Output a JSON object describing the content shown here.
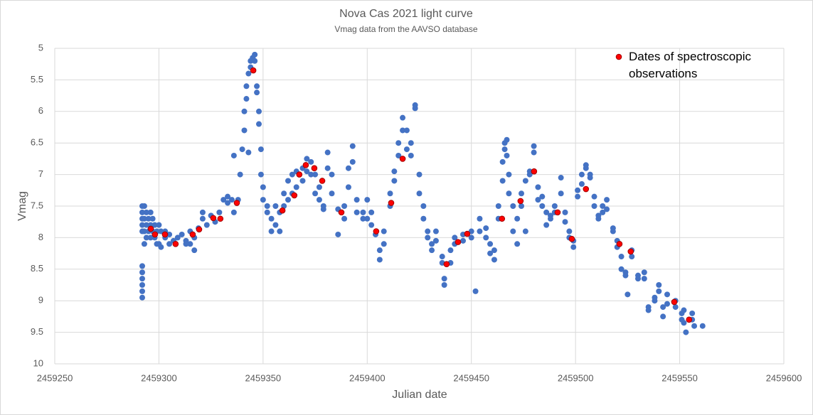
{
  "chart_data": {
    "type": "scatter",
    "title": "Nova Cas 2021 light curve",
    "subtitle": "Vmag data from the AAVSO database",
    "x_label": "Julian date",
    "y_label": "Vmag",
    "xlim": [
      2459250,
      2459600
    ],
    "xticks": [
      2459250,
      2459300,
      2459350,
      2459400,
      2459450,
      2459500,
      2459550,
      2459600
    ],
    "ylim": [
      10,
      5
    ],
    "yticks": [
      5,
      5.5,
      6,
      6.5,
      7,
      7.5,
      8,
      8.5,
      9,
      9.5,
      10
    ],
    "y_inverted": true,
    "grid": true,
    "legend": "upper right",
    "series": [
      {
        "color": "#4472c4",
        "x": [
          2459292,
          2459292,
          2459292,
          2459292,
          2459292,
          2459292,
          2459292,
          2459292,
          2459292,
          2459292,
          2459292,
          2459293,
          2459293,
          2459293,
          2459293,
          2459294,
          2459294,
          2459294,
          2459295,
          2459295,
          2459296,
          2459296,
          2459296,
          2459297,
          2459297,
          2459298,
          2459298,
          2459299,
          2459299,
          2459300,
          2459300,
          2459301,
          2459301,
          2459303,
          2459303,
          2459305,
          2459305,
          2459307,
          2459309,
          2459311,
          2459313,
          2459313,
          2459315,
          2459315,
          2459317,
          2459317,
          2459319,
          2459321,
          2459321,
          2459323,
          2459325,
          2459327,
          2459329,
          2459331,
          2459333,
          2459333,
          2459335,
          2459336,
          2459336,
          2459338,
          2459339,
          2459340,
          2459341,
          2459341,
          2459342,
          2459342,
          2459343,
          2459343,
          2459344,
          2459344,
          2459345,
          2459346,
          2459346,
          2459347,
          2459347,
          2459348,
          2459348,
          2459349,
          2459349,
          2459350,
          2459350,
          2459352,
          2459352,
          2459354,
          2459354,
          2459356,
          2459356,
          2459358,
          2459358,
          2459360,
          2459360,
          2459362,
          2459362,
          2459364,
          2459364,
          2459366,
          2459366,
          2459369,
          2459369,
          2459371,
          2459371,
          2459373,
          2459373,
          2459375,
          2459375,
          2459377,
          2459377,
          2459379,
          2459379,
          2459381,
          2459381,
          2459383,
          2459383,
          2459386,
          2459386,
          2459389,
          2459389,
          2459391,
          2459391,
          2459393,
          2459393,
          2459395,
          2459395,
          2459398,
          2459398,
          2459400,
          2459400,
          2459402,
          2459402,
          2459404,
          2459406,
          2459406,
          2459408,
          2459408,
          2459411,
          2459411,
          2459413,
          2459413,
          2459415,
          2459415,
          2459417,
          2459417,
          2459419,
          2459419,
          2459421,
          2459421,
          2459423,
          2459423,
          2459425,
          2459425,
          2459427,
          2459427,
          2459429,
          2459429,
          2459431,
          2459431,
          2459433,
          2459433,
          2459436,
          2459436,
          2459437,
          2459437,
          2459440,
          2459440,
          2459442,
          2459442,
          2459446,
          2459446,
          2459450,
          2459450,
          2459452,
          2459454,
          2459454,
          2459457,
          2459457,
          2459459,
          2459459,
          2459461,
          2459461,
          2459463,
          2459463,
          2459465,
          2459465,
          2459466,
          2459466,
          2459467,
          2459467,
          2459468,
          2459468,
          2459470,
          2459470,
          2459472,
          2459472,
          2459474,
          2459474,
          2459476,
          2459476,
          2459478,
          2459478,
          2459480,
          2459480,
          2459482,
          2459482,
          2459484,
          2459484,
          2459486,
          2459486,
          2459488,
          2459488,
          2459490,
          2459490,
          2459493,
          2459493,
          2459495,
          2459495,
          2459497,
          2459497,
          2459499,
          2459499,
          2459501,
          2459501,
          2459503,
          2459503,
          2459505,
          2459505,
          2459507,
          2459507,
          2459509,
          2459509,
          2459511,
          2459511,
          2459513,
          2459513,
          2459515,
          2459515,
          2459518,
          2459518,
          2459520,
          2459520,
          2459522,
          2459522,
          2459524,
          2459524,
          2459525,
          2459527,
          2459527,
          2459530,
          2459530,
          2459533,
          2459533,
          2459535,
          2459535,
          2459538,
          2459538,
          2459540,
          2459540,
          2459542,
          2459542,
          2459544,
          2459544,
          2459548,
          2459548,
          2459551,
          2459551,
          2459552,
          2459552,
          2459553,
          2459556,
          2459556,
          2459557,
          2459561
        ],
        "values": [
          7.5,
          7.6,
          7.7,
          7.8,
          7.9,
          8.45,
          8.55,
          8.65,
          8.75,
          8.85,
          8.95,
          7.5,
          7.7,
          7.9,
          8.1,
          7.6,
          7.8,
          8.0,
          7.7,
          7.9,
          7.6,
          7.8,
          8.0,
          7.7,
          7.9,
          7.8,
          8.0,
          7.9,
          8.1,
          7.8,
          8.1,
          7.9,
          8.15,
          7.9,
          8.0,
          7.95,
          8.1,
          8.05,
          8.0,
          7.95,
          8.05,
          8.1,
          7.9,
          8.1,
          8.0,
          8.2,
          7.85,
          7.7,
          7.6,
          7.8,
          7.65,
          7.75,
          7.6,
          7.4,
          7.45,
          7.35,
          7.4,
          7.6,
          6.7,
          7.4,
          7.0,
          6.6,
          6.3,
          6.0,
          5.8,
          5.6,
          5.4,
          6.65,
          5.3,
          5.2,
          5.15,
          5.2,
          5.1,
          5.6,
          5.7,
          6.0,
          6.2,
          6.6,
          7.0,
          7.2,
          7.4,
          7.5,
          7.6,
          7.7,
          7.9,
          7.5,
          7.8,
          7.6,
          7.9,
          7.5,
          7.3,
          7.1,
          7.4,
          7.0,
          7.3,
          6.95,
          7.2,
          7.1,
          6.9,
          6.75,
          6.95,
          6.8,
          7.0,
          7.0,
          7.3,
          7.4,
          7.2,
          7.5,
          7.55,
          6.65,
          6.9,
          7.0,
          7.3,
          7.55,
          7.95,
          7.7,
          7.5,
          7.2,
          6.9,
          6.55,
          6.8,
          7.4,
          7.6,
          7.6,
          7.7,
          7.4,
          7.7,
          7.8,
          7.6,
          7.95,
          8.2,
          8.35,
          8.1,
          7.9,
          7.5,
          7.3,
          6.95,
          7.1,
          6.7,
          6.5,
          6.3,
          6.1,
          6.3,
          6.6,
          6.5,
          6.7,
          5.95,
          5.9,
          7.0,
          7.3,
          7.5,
          7.7,
          7.9,
          8.0,
          8.2,
          8.1,
          7.9,
          8.05,
          8.3,
          8.4,
          8.65,
          8.75,
          8.2,
          8.4,
          8.0,
          8.1,
          7.95,
          8.05,
          7.9,
          8.0,
          8.85,
          7.9,
          7.7,
          7.85,
          8.0,
          8.1,
          8.25,
          8.35,
          8.2,
          7.7,
          7.5,
          7.1,
          6.8,
          6.6,
          6.5,
          6.45,
          6.7,
          7.0,
          7.3,
          7.5,
          7.9,
          8.1,
          7.7,
          7.5,
          7.3,
          7.9,
          7.1,
          7.0,
          6.95,
          6.55,
          6.65,
          7.2,
          7.4,
          7.35,
          7.5,
          7.6,
          7.8,
          7.65,
          7.7,
          7.6,
          7.5,
          7.3,
          7.05,
          7.6,
          7.75,
          7.9,
          8.0,
          8.05,
          8.15,
          7.35,
          7.25,
          7.0,
          7.15,
          6.9,
          6.85,
          7.0,
          7.05,
          7.35,
          7.5,
          7.65,
          7.7,
          7.6,
          7.5,
          7.55,
          7.4,
          7.85,
          7.9,
          8.05,
          8.15,
          8.3,
          8.5,
          8.6,
          8.55,
          8.9,
          8.3,
          8.2,
          8.6,
          8.65,
          8.55,
          8.65,
          9.1,
          9.15,
          9.0,
          8.95,
          8.75,
          8.85,
          9.1,
          9.25,
          8.9,
          9.05,
          9.0,
          9.1,
          9.2,
          9.3,
          9.15,
          9.35,
          9.5,
          9.2,
          9.3,
          9.4,
          9.4
        ]
      },
      {
        "name": "Dates of spectroscopic observations",
        "color": "#ff0000",
        "x": [
          2459296.1,
          2459298.1,
          2459302.9,
          2459308,
          2459316.2,
          2459319.3,
          2459326.1,
          2459329.5,
          2459337.4,
          2459345.3,
          2459359.3,
          2459365,
          2459367.4,
          2459370.5,
          2459374.6,
          2459378.4,
          2459387.6,
          2459404.3,
          2459411.5,
          2459417,
          2459438.1,
          2459443.6,
          2459448,
          2459464.7,
          2459473.6,
          2459480.1,
          2459491.4,
          2459498.2,
          2459505,
          2459521.1,
          2459526.5,
          2459547.4,
          2459554.5
        ],
        "values": [
          7.86,
          7.95,
          7.95,
          8.1,
          7.95,
          7.87,
          7.69,
          7.7,
          7.45,
          5.35,
          7.57,
          7.33,
          7.0,
          6.85,
          6.9,
          7.1,
          7.6,
          7.9,
          7.45,
          6.75,
          8.42,
          8.07,
          7.94,
          7.7,
          7.42,
          6.95,
          7.6,
          8.02,
          7.23,
          8.1,
          8.22,
          9.02,
          9.3
        ]
      }
    ]
  }
}
